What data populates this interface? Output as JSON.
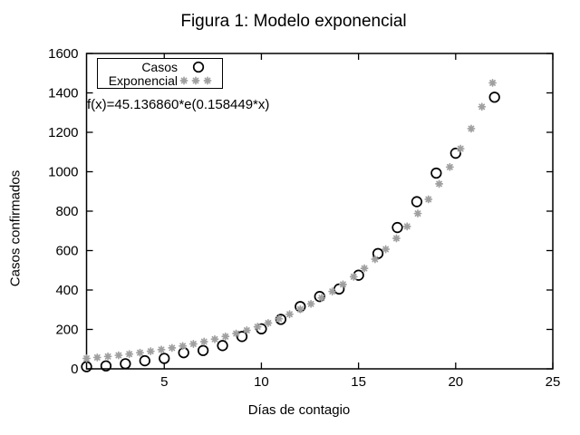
{
  "chart_data": {
    "type": "scatter",
    "title": "Figura 1: Modelo exponencial",
    "xlabel": "Días de contagio",
    "ylabel": "Casos confirmados",
    "annotation": "f(x)=45.136860*e(0.158449*x)",
    "xlim": [
      1,
      25
    ],
    "ylim": [
      0,
      1600
    ],
    "xticks": [
      5,
      10,
      15,
      20,
      25
    ],
    "yticks": [
      0,
      200,
      400,
      600,
      800,
      1000,
      1200,
      1400,
      1600
    ],
    "grid": false,
    "legend_position": "top-left",
    "axis_color": "#000000",
    "background_color": "#ffffff",
    "series": [
      {
        "name": "Casos",
        "marker": "circle",
        "color": "#000000",
        "x": [
          1,
          2,
          3,
          4,
          5,
          6,
          7,
          8,
          9,
          10,
          11,
          12,
          13,
          14,
          15,
          16,
          17,
          18,
          19,
          20,
          22
        ],
        "y": [
          11,
          15,
          26,
          41,
          53,
          82,
          93,
          118,
          164,
          203,
          251,
          316,
          367,
          405,
          475,
          585,
          717,
          848,
          993,
          1094,
          1378
        ]
      },
      {
        "name": "Exponencial",
        "marker": "asterisk",
        "color": "#a0a0a0",
        "x": [
          1,
          1.55,
          2.1,
          2.65,
          3.2,
          3.75,
          4.3,
          4.85,
          5.4,
          5.95,
          6.5,
          7.05,
          7.6,
          8.15,
          8.7,
          9.25,
          9.8,
          10.35,
          10.9,
          11.45,
          12,
          12.55,
          13.1,
          13.65,
          14.2,
          14.75,
          15.3,
          15.85,
          16.4,
          16.95,
          17.5,
          18.05,
          18.6,
          19.15,
          19.7,
          20.25,
          20.8,
          21.35,
          21.9
        ],
        "y": [
          52.9,
          57.7,
          63.0,
          68.7,
          74.9,
          81.8,
          89.2,
          97.3,
          106.2,
          115.9,
          126.4,
          137.9,
          150.5,
          164.2,
          179.2,
          195.5,
          213.3,
          232.7,
          253.9,
          277.0,
          302.2,
          329.7,
          359.8,
          392.5,
          428.3,
          467.3,
          509.8,
          556.3,
          606.9,
          662.2,
          722.5,
          788.3,
          860.0,
          938.4,
          1023.8,
          1117.0,
          1218.7,
          1329.7,
          1450.8
        ]
      }
    ]
  }
}
